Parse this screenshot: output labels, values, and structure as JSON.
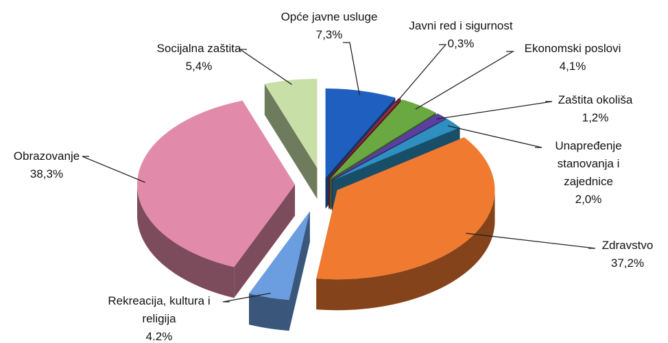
{
  "chart_data": {
    "type": "pie",
    "categories": [
      "Opće javne usluge",
      "Javni red i sigurnost",
      "Ekonomski poslovi",
      "Zaštita okoliša",
      "Unapređenje stanovanja i zajednice",
      "Zdravstvo",
      "Rekreacija, kultura i religija",
      "Obrazovanje",
      "Socijalna zaštita"
    ],
    "values": [
      7.3,
      0.3,
      4.1,
      1.2,
      2.0,
      37.2,
      4.2,
      38.3,
      5.4
    ],
    "value_labels": [
      "7,3%",
      "0,3%",
      "4,1%",
      "1,2%",
      "2,0%",
      "37,2%",
      "4.2%",
      "38,3%",
      "5,4%"
    ],
    "colors": [
      "#1f5fbf",
      "#a3283c",
      "#6aa842",
      "#5a3ea0",
      "#2e8fc0",
      "#f07a30",
      "#6a9ee0",
      "#e28aaa",
      "#c8e0a8"
    ]
  }
}
